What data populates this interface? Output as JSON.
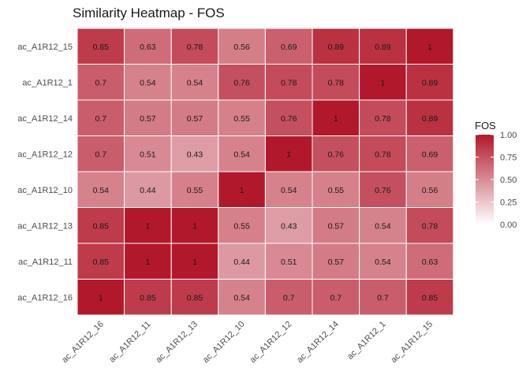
{
  "chart_data": {
    "type": "heatmap",
    "title": "Similarity Heatmap - FOS",
    "x_categories": [
      "ac_A1R12_16",
      "ac_A1R12_11",
      "ac_A1R12_13",
      "ac_A1R12_10",
      "ac_A1R12_12",
      "ac_A1R12_14",
      "ac_A1R12_1",
      "ac_A1R12_15"
    ],
    "y_categories_top_to_bottom": [
      "ac_A1R12_15",
      "ac_A1R12_1",
      "ac_A1R12_14",
      "ac_A1R12_12",
      "ac_A1R12_10",
      "ac_A1R12_13",
      "ac_A1R12_11",
      "ac_A1R12_16"
    ],
    "values": [
      [
        "0.85",
        "0.63",
        "0.78",
        "0.56",
        "0.69",
        "0.89",
        "0.89",
        "1"
      ],
      [
        "0.7",
        "0.54",
        "0.54",
        "0.76",
        "0.78",
        "0.78",
        "1",
        "0.89"
      ],
      [
        "0.7",
        "0.57",
        "0.57",
        "0.55",
        "0.76",
        "1",
        "0.78",
        "0.89"
      ],
      [
        "0.7",
        "0.51",
        "0.43",
        "0.54",
        "1",
        "0.76",
        "0.78",
        "0.69"
      ],
      [
        "0.54",
        "0.44",
        "0.55",
        "1",
        "0.54",
        "0.55",
        "0.76",
        "0.56"
      ],
      [
        "0.85",
        "1",
        "1",
        "0.55",
        "0.43",
        "0.57",
        "0.54",
        "0.78"
      ],
      [
        "0.85",
        "1",
        "1",
        "0.44",
        "0.51",
        "0.57",
        "0.54",
        "0.63"
      ],
      [
        "1",
        "0.85",
        "0.85",
        "0.54",
        "0.7",
        "0.7",
        "0.7",
        "0.85"
      ]
    ],
    "legend": {
      "title": "FOS",
      "ticks": [
        "1.00",
        "0.75",
        "0.50",
        "0.25",
        "0.00"
      ],
      "range": [
        0,
        1
      ],
      "color_low": "#ffffff",
      "color_high": "#b2182b"
    },
    "grid": false
  }
}
